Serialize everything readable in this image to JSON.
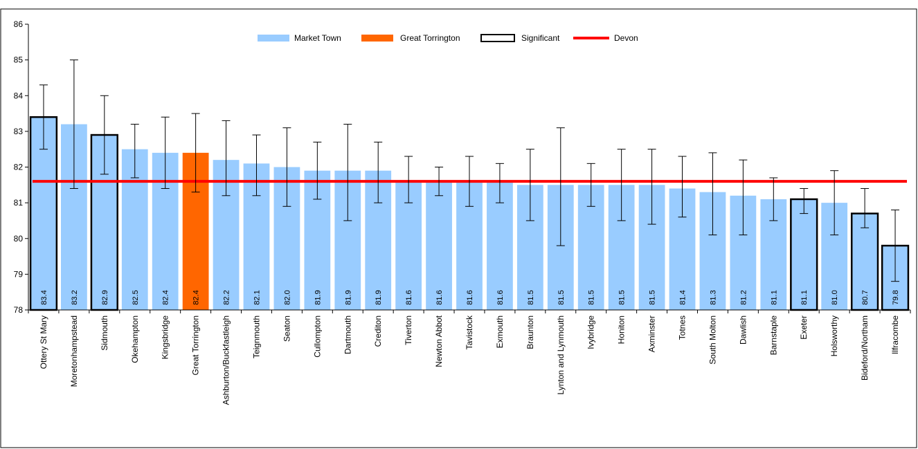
{
  "chart_data": {
    "type": "bar",
    "title": "",
    "xlabel": "",
    "ylabel": "",
    "ylim": [
      78,
      86
    ],
    "yticks": [
      78,
      79,
      80,
      81,
      82,
      83,
      84,
      85,
      86
    ],
    "categories": [
      "Ottery St Mary",
      "Moretonhampstead",
      "Sidmouth",
      "Okehampton",
      "Kingsbridge",
      "Great Torrington",
      "Ashburton/Buckfastleigh",
      "Teignmouth",
      "Seaton",
      "Cullompton",
      "Dartmouth",
      "Crediton",
      "Tiverton",
      "Newton Abbot",
      "Tavistock",
      "Exmouth",
      "Braunton",
      "Lynton and Lynmouth",
      "Ivybridge",
      "Honiton",
      "Axminster",
      "Totnes",
      "South Molton",
      "Dawlish",
      "Barnstaple",
      "Exeter",
      "Holsworthy",
      "Bideford/Northam",
      "Ilfracombe"
    ],
    "values": [
      83.4,
      83.2,
      82.9,
      82.5,
      82.4,
      82.4,
      82.2,
      82.1,
      82.0,
      81.9,
      81.9,
      81.9,
      81.6,
      81.6,
      81.6,
      81.6,
      81.5,
      81.5,
      81.5,
      81.5,
      81.5,
      81.4,
      81.3,
      81.2,
      81.1,
      81.1,
      81.0,
      80.7,
      79.8
    ],
    "labels": [
      "83.4",
      "83.2",
      "82.9",
      "82.5",
      "82.4",
      "82.4",
      "82.2",
      "82.1",
      "82.0",
      "81.9",
      "81.9",
      "81.9",
      "81.6",
      "81.6",
      "81.6",
      "81.6",
      "81.5",
      "81.5",
      "81.5",
      "81.5",
      "81.5",
      "81.4",
      "81.3",
      "81.2",
      "81.1",
      "81.1",
      "81.0",
      "80.7",
      "79.8"
    ],
    "error_lower": [
      82.5,
      81.4,
      81.8,
      81.7,
      81.4,
      81.3,
      81.2,
      81.2,
      80.9,
      81.1,
      80.5,
      81.0,
      81.0,
      81.2,
      80.9,
      81.0,
      80.5,
      79.8,
      80.9,
      80.5,
      80.4,
      80.6,
      80.1,
      80.1,
      80.5,
      80.7,
      80.1,
      80.3,
      78.8
    ],
    "error_upper": [
      84.3,
      85.0,
      84.0,
      83.2,
      83.4,
      83.5,
      83.3,
      82.9,
      83.1,
      82.7,
      83.2,
      82.7,
      82.3,
      82.0,
      82.3,
      82.1,
      82.5,
      83.1,
      82.1,
      82.5,
      82.5,
      82.3,
      82.4,
      82.2,
      81.7,
      81.4,
      81.9,
      81.4,
      80.8
    ],
    "highlight": [
      "Great Torrington"
    ],
    "significant": [
      "Ottery St Mary",
      "Sidmouth",
      "Exeter",
      "Bideford/Northam",
      "Ilfracombe"
    ],
    "reference_line": {
      "name": "Devon",
      "value": 81.6,
      "color": "#ff0000"
    },
    "colors": {
      "market_town": "#99ccff",
      "great_torrington": "#ff6600",
      "significant_border": "#000000",
      "devon_line": "#ff0000"
    },
    "legend": {
      "placement": "top-center",
      "entries": [
        {
          "label": "Market Town",
          "kind": "bar",
          "color": "#99ccff"
        },
        {
          "label": "Great Torrington",
          "kind": "bar",
          "color": "#ff6600"
        },
        {
          "label": "Significant",
          "kind": "outline",
          "color": "#000000"
        },
        {
          "label": "Devon",
          "kind": "line",
          "color": "#ff0000"
        }
      ]
    },
    "grid": false
  }
}
